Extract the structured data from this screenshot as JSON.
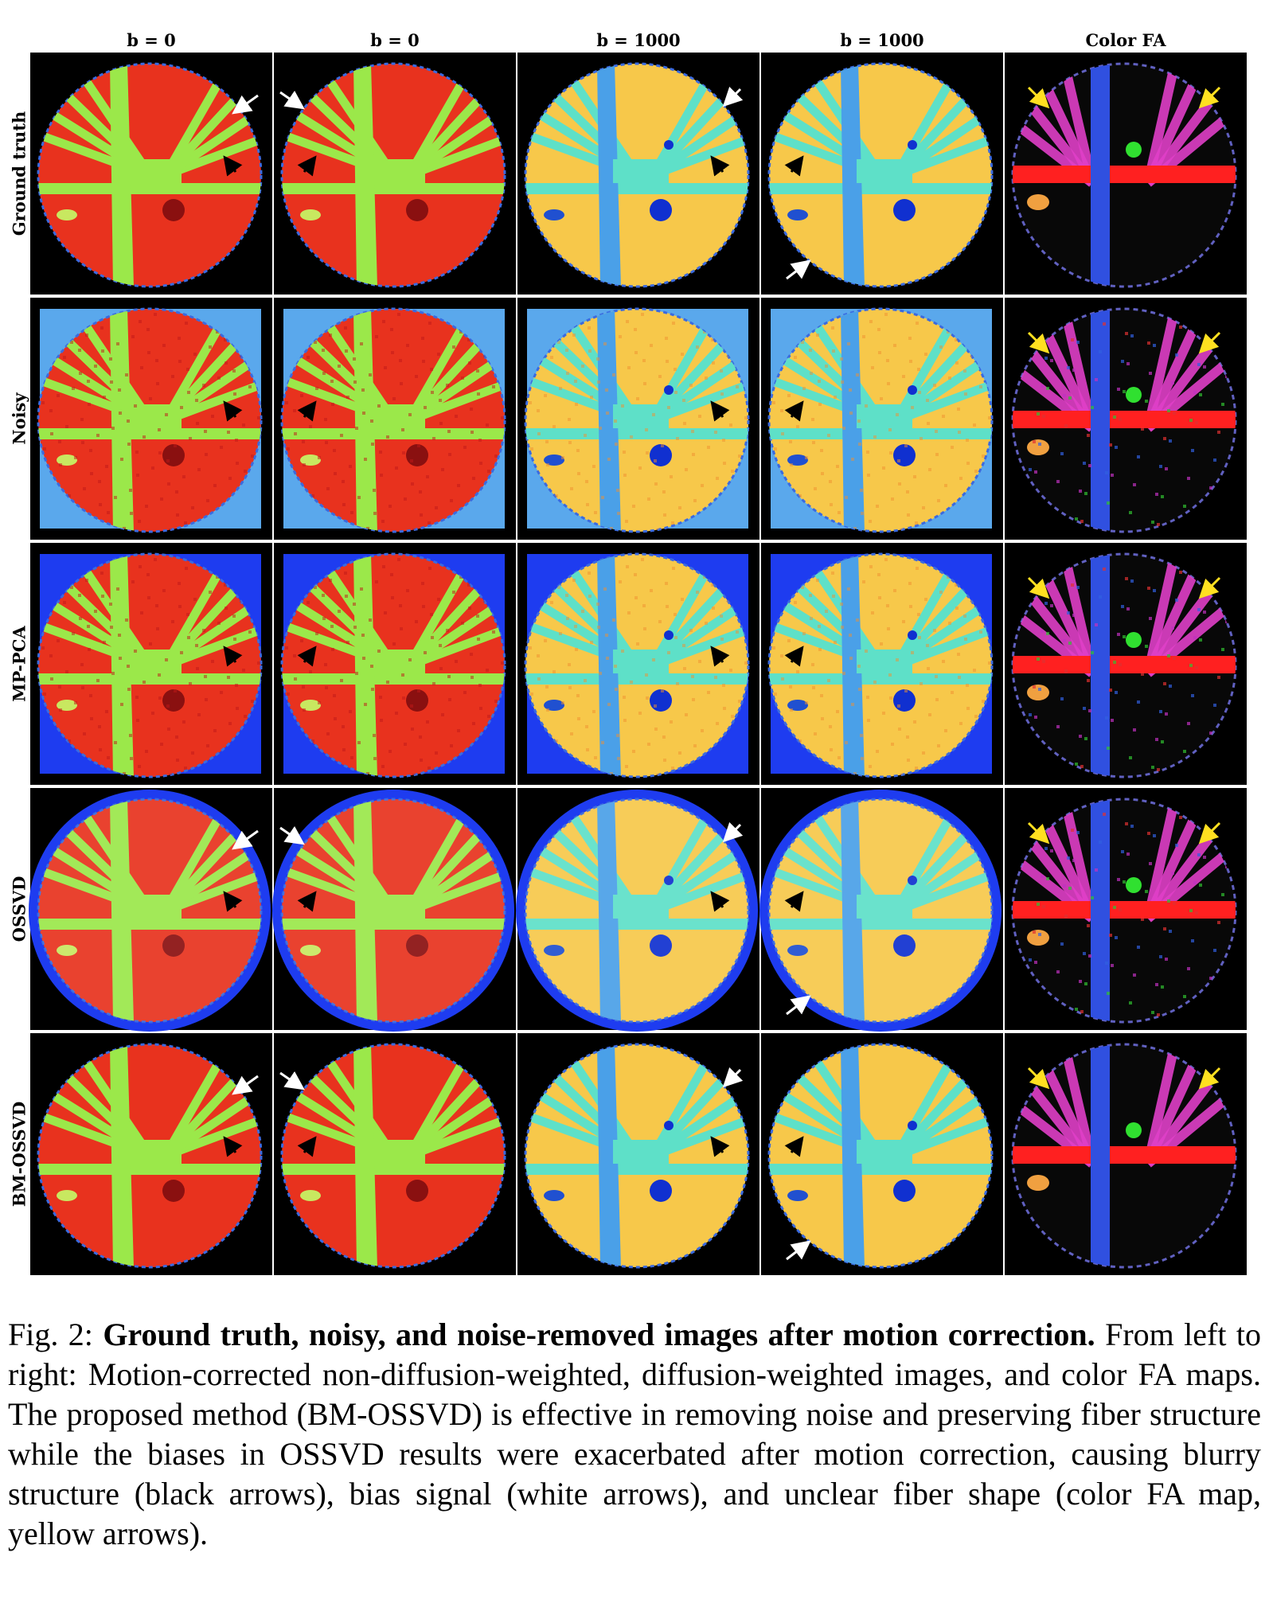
{
  "figure": {
    "column_labels": [
      "b = 0",
      "b = 0",
      "b = 1000",
      "b = 1000",
      "Color FA"
    ],
    "row_labels": [
      "Ground truth",
      "Noisy",
      "MP-PCA",
      "OSSVD",
      "BM-OSSVD"
    ],
    "colors": {
      "b0_background": "#e8321e",
      "b0_fiber": "#9be84a",
      "b1000_background": "#f7c84a",
      "b1000_fiber": "#5ee0c8",
      "b1000_vertical": "#4aa0e8",
      "noise_square": "#5aa8ec",
      "mppca_square": "#1e3cf0",
      "fa_magenta": "#e040c8",
      "fa_red": "#ff2020",
      "fa_blue": "#3050e0",
      "fa_green": "#30e030",
      "arrow_white": "#ffffff",
      "arrow_black": "#000000",
      "arrow_yellow": "#ffe020"
    }
  },
  "caption": {
    "label": "Fig. 2:",
    "bold_title": "Ground truth, noisy, and noise-removed images after motion correction.",
    "text": "From left to right: Motion-corrected non-diffusion-weighted, diffusion-weighted images, and color FA maps. The proposed method (BM-OSSVD) is effective in removing noise and preserving fiber structure while the biases in OSSVD results were exacerbated after motion correction, causing blurry structure (black arrows), bias signal (white arrows), and unclear fiber shape (color FA map, yellow arrows)."
  }
}
